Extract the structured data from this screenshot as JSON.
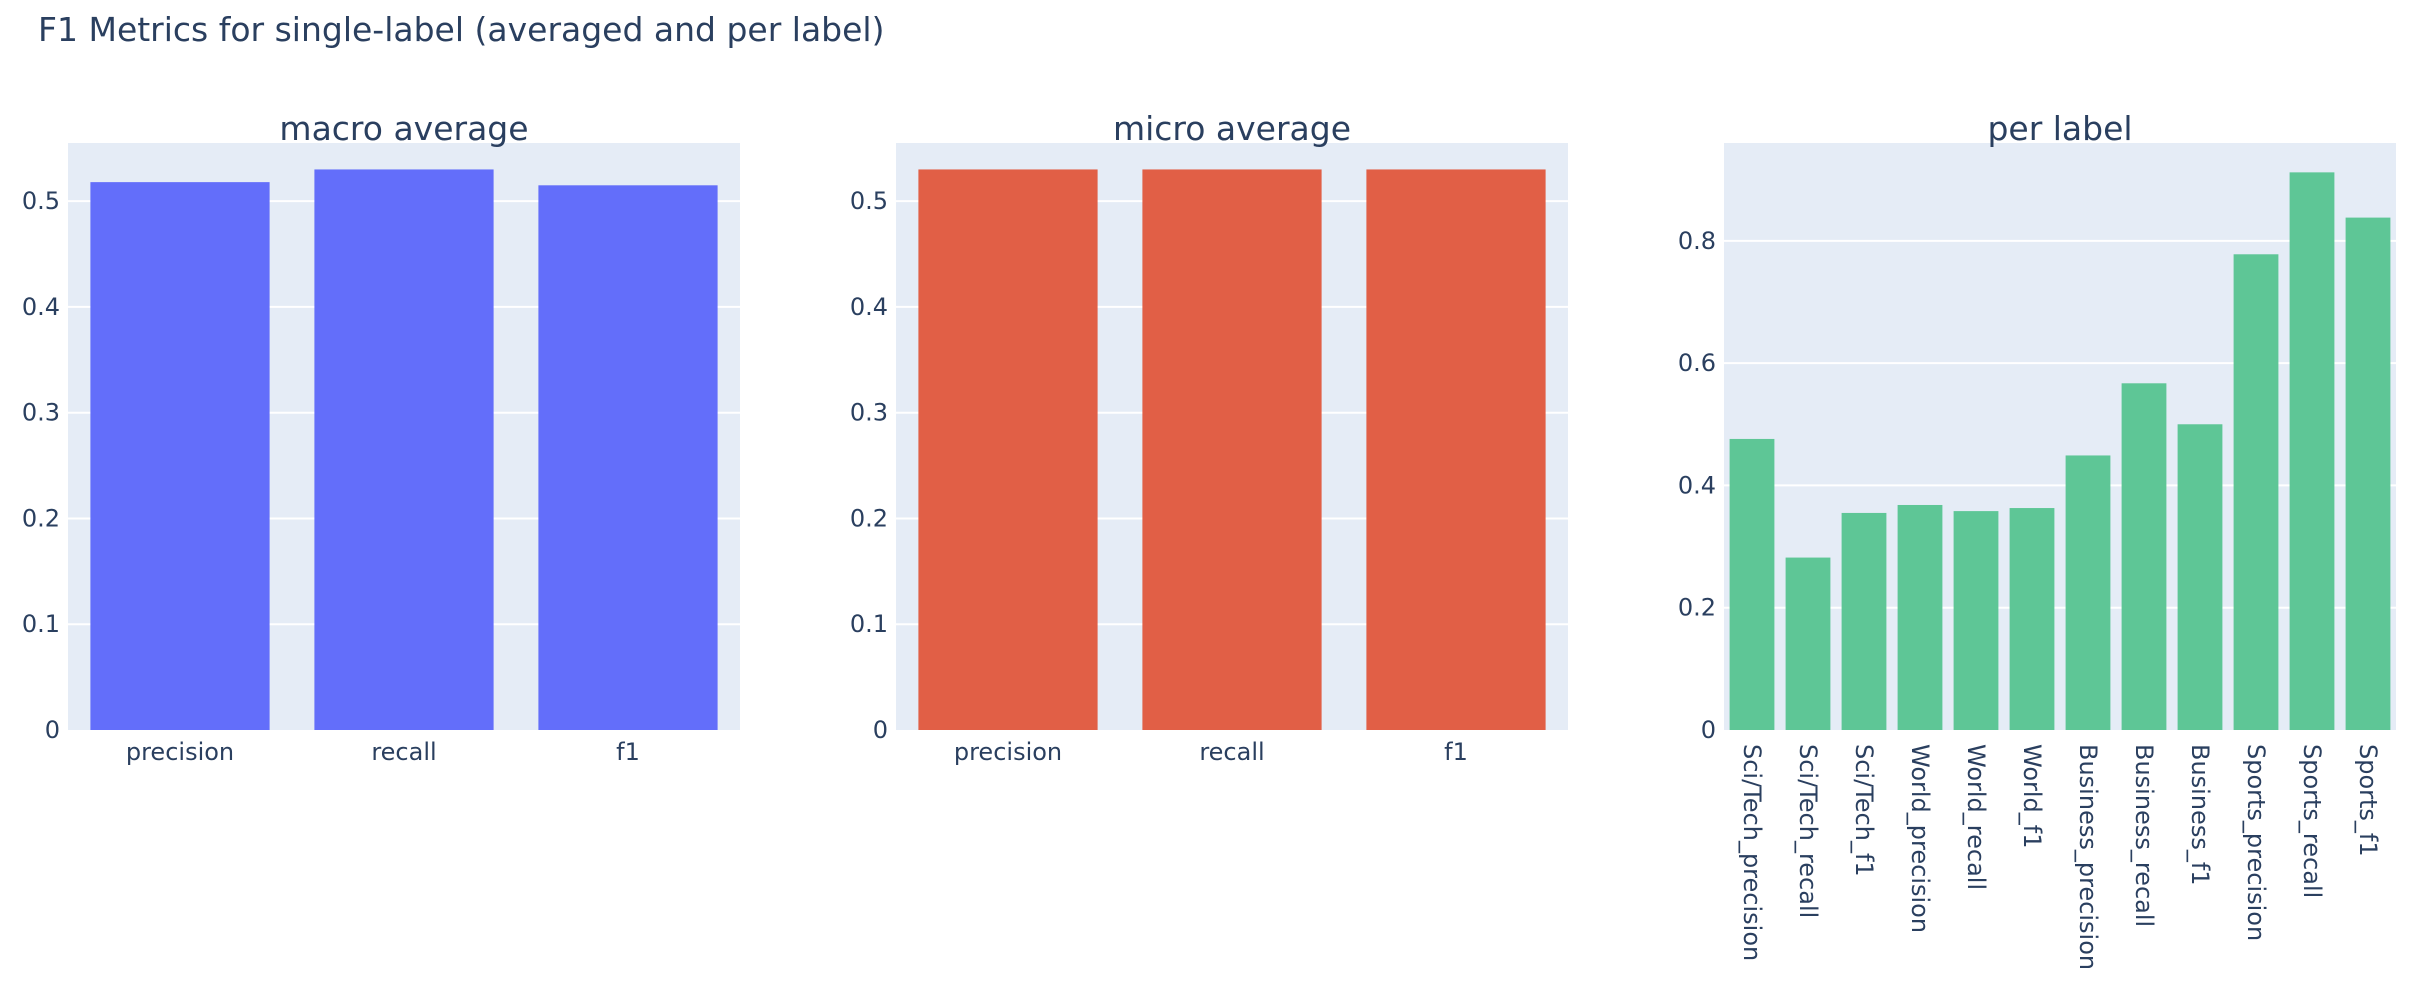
{
  "figure_title": "F1 Metrics for single-label (averaged and per label)",
  "colors": {
    "plot_bg": "#e5ecf6",
    "grid": "#ffffff",
    "text": "#2a3f5f"
  },
  "chart_data": [
    {
      "type": "bar",
      "title": "macro average",
      "categories": [
        "precision",
        "recall",
        "f1"
      ],
      "values": [
        0.518,
        0.53,
        0.515
      ],
      "ylim": [
        0,
        0.555
      ],
      "yticks": [
        0,
        0.1,
        0.2,
        0.3,
        0.4,
        0.5
      ],
      "ytick_labels": [
        "0",
        "0.1",
        "0.2",
        "0.3",
        "0.4",
        "0.5"
      ],
      "color": "#636efa",
      "xlabel": "",
      "ylabel": "",
      "grid": true
    },
    {
      "type": "bar",
      "title": "micro average",
      "categories": [
        "precision",
        "recall",
        "f1"
      ],
      "values": [
        0.53,
        0.53,
        0.53
      ],
      "ylim": [
        0,
        0.555
      ],
      "yticks": [
        0,
        0.1,
        0.2,
        0.3,
        0.4,
        0.5
      ],
      "ytick_labels": [
        "0",
        "0.1",
        "0.2",
        "0.3",
        "0.4",
        "0.5"
      ],
      "color": "#e15f46",
      "xlabel": "",
      "ylabel": "",
      "grid": true
    },
    {
      "type": "bar",
      "title": "per label",
      "categories": [
        "Sci/Tech_precision",
        "Sci/Tech_recall",
        "Sci/Tech_f1",
        "World_precision",
        "World_recall",
        "World_f1",
        "Business_precision",
        "Business_recall",
        "Business_f1",
        "Sports_precision",
        "Sports_recall",
        "Sports_f1"
      ],
      "values": [
        0.476,
        0.282,
        0.355,
        0.368,
        0.358,
        0.363,
        0.449,
        0.567,
        0.5,
        0.778,
        0.912,
        0.838
      ],
      "ylim": [
        0,
        0.96
      ],
      "yticks": [
        0,
        0.2,
        0.4,
        0.6,
        0.8
      ],
      "ytick_labels": [
        "0",
        "0.2",
        "0.4",
        "0.6",
        "0.8"
      ],
      "color": "#5ec696",
      "xlabel": "",
      "ylabel": "",
      "grid": true,
      "rotate_xticks": true
    }
  ]
}
